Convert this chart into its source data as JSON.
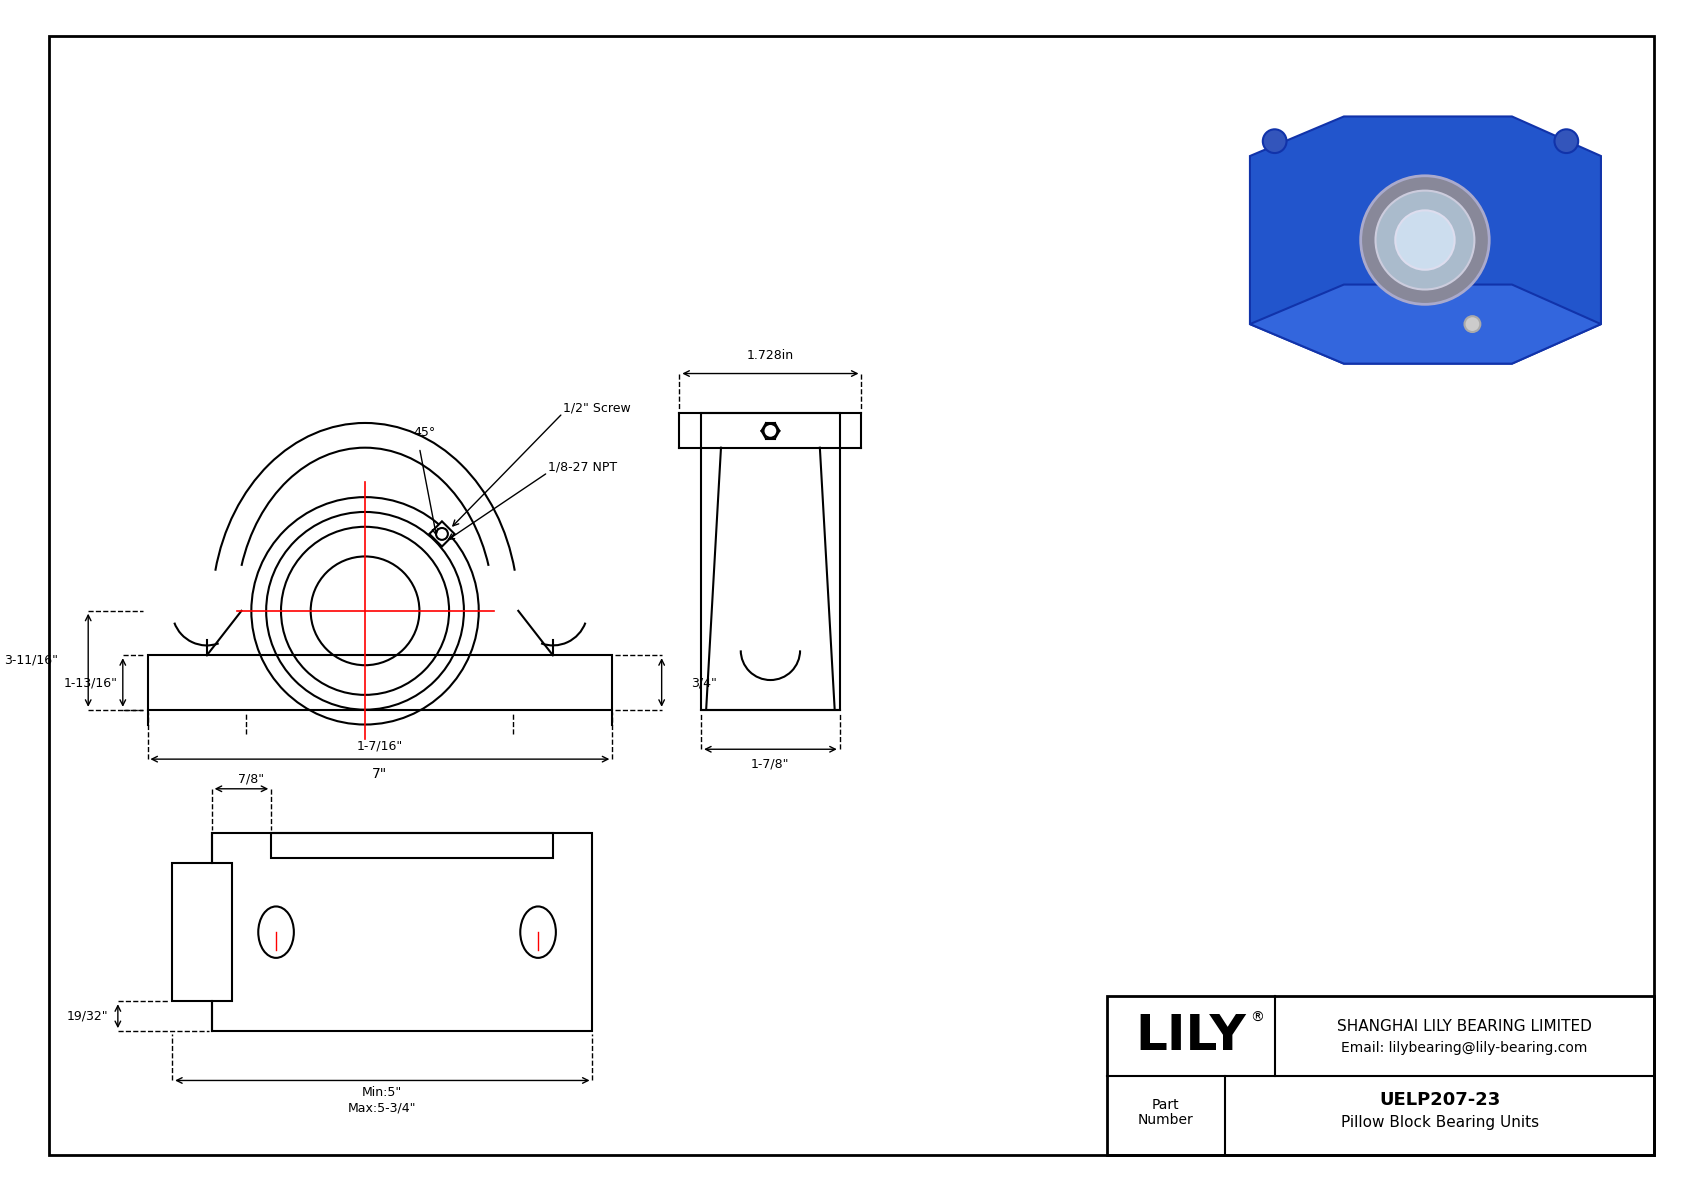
{
  "bg_color": "#ffffff",
  "line_color": "#000000",
  "red_color": "#ff0000",
  "dim_color": "#000000",
  "title_block": {
    "company": "SHANGHAI LILY BEARING LIMITED",
    "email": "Email: lilybearing@lily-bearing.com",
    "part_label": "Part\nNumber",
    "part_number": "UELP207-23",
    "part_desc": "Pillow Block Bearing Units",
    "brand": "LILY"
  },
  "dims_front": {
    "height_total": "3-11/16\"",
    "height_base": "1-13/16\"",
    "width_total": "7\"",
    "bolt_span": "1-7/16\"",
    "angle": "45°",
    "screw": "1/2\" Screw",
    "npt": "1/8-27 NPT",
    "side_height": "3/4\""
  },
  "dims_side": {
    "width": "1.728in",
    "base": "1-7/8\""
  },
  "dims_bottom": {
    "width_label": "7/8\"",
    "height_label": "19/32\"",
    "min_span": "Min:5\"",
    "max_span": "Max:5-3/4\""
  }
}
